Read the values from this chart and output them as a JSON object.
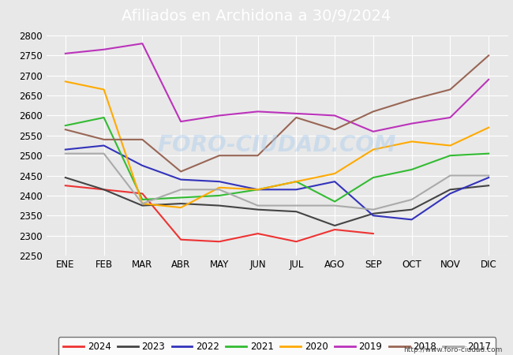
{
  "title": "Afiliados en Archidona a 30/9/2024",
  "months": [
    "ENE",
    "FEB",
    "MAR",
    "ABR",
    "MAY",
    "JUN",
    "JUL",
    "AGO",
    "SEP",
    "OCT",
    "NOV",
    "DIC"
  ],
  "ylim": [
    2250,
    2800
  ],
  "yticks": [
    2250,
    2300,
    2350,
    2400,
    2450,
    2500,
    2550,
    2600,
    2650,
    2700,
    2750,
    2800
  ],
  "series": {
    "2024": {
      "color": "#ee3333",
      "data": [
        2425,
        2415,
        2405,
        2290,
        2285,
        2305,
        2285,
        2315,
        2305,
        null,
        null,
        null
      ]
    },
    "2023": {
      "color": "#444444",
      "data": [
        2445,
        2415,
        2375,
        2380,
        2375,
        2365,
        2360,
        2325,
        2355,
        2365,
        2415,
        2425
      ]
    },
    "2022": {
      "color": "#3333bb",
      "data": [
        2515,
        2525,
        2475,
        2440,
        2435,
        2415,
        2415,
        2435,
        2350,
        2340,
        2405,
        2445
      ]
    },
    "2021": {
      "color": "#33bb33",
      "data": [
        2575,
        2595,
        2390,
        2395,
        2400,
        2415,
        2435,
        2385,
        2445,
        2465,
        2500,
        2505
      ]
    },
    "2020": {
      "color": "#ffaa00",
      "data": [
        2685,
        2665,
        2380,
        2370,
        2420,
        2415,
        2435,
        2455,
        2515,
        2535,
        2525,
        2570
      ]
    },
    "2019": {
      "color": "#bb33bb",
      "data": [
        2755,
        2765,
        2780,
        2585,
        2600,
        2610,
        2605,
        2600,
        2560,
        2580,
        2595,
        2690
      ]
    },
    "2018": {
      "color": "#996655",
      "data": [
        2565,
        2540,
        2540,
        2460,
        2500,
        2500,
        2595,
        2565,
        2610,
        2640,
        2665,
        2750
      ]
    },
    "2017": {
      "color": "#aaaaaa",
      "data": [
        2505,
        2505,
        2380,
        2415,
        2415,
        2375,
        2375,
        2375,
        2365,
        2390,
        2450,
        2450
      ]
    }
  },
  "series_order": [
    "2024",
    "2023",
    "2022",
    "2021",
    "2020",
    "2019",
    "2018",
    "2017"
  ],
  "watermark": "FORO-CIUDAD.COM",
  "url": "http://www.foro-ciudad.com",
  "title_bg": "#5588bb",
  "title_color": "#ffffff",
  "title_fontsize": 14,
  "bg_color": "#e8e8e8",
  "plot_bg": "#e8e8e8",
  "grid_color": "#ffffff",
  "legend_border_color": "#555555"
}
